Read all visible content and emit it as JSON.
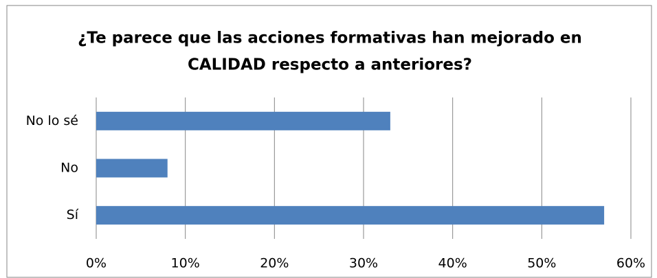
{
  "chart_data": {
    "type": "bar",
    "orientation": "horizontal",
    "title": [
      "¿Te parece que las acciones formativas han mejorado en",
      "CALIDAD respecto a anteriores?"
    ],
    "categories": [
      "Sí",
      "No",
      "No lo sé"
    ],
    "values": [
      57,
      8,
      33
    ],
    "color": "#4f81bd",
    "xlim": [
      0,
      60
    ],
    "xticks": [
      {
        "value": 0,
        "label": "0%"
      },
      {
        "value": 10,
        "label": "10%"
      },
      {
        "value": 20,
        "label": "20%"
      },
      {
        "value": 30,
        "label": "30%"
      },
      {
        "value": 40,
        "label": "40%"
      },
      {
        "value": 50,
        "label": "50%"
      },
      {
        "value": 60,
        "label": "60%"
      }
    ],
    "grid": true
  }
}
